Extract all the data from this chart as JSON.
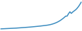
{
  "line_color": "#3a8bbf",
  "linewidth": 1.1,
  "background_color": "#ffffff",
  "y_values": [
    1.0,
    1.02,
    1.04,
    1.06,
    1.08,
    1.1,
    1.12,
    1.14,
    1.16,
    1.18,
    1.2,
    1.22,
    1.25,
    1.28,
    1.31,
    1.34,
    1.37,
    1.4,
    1.43,
    1.46,
    1.49,
    1.52,
    1.56,
    1.6,
    1.64,
    1.68,
    1.72,
    1.76,
    1.8,
    1.85,
    1.9,
    1.95,
    2.0,
    2.05,
    2.12,
    2.2,
    2.3,
    2.42,
    2.56,
    2.72,
    2.9,
    3.1,
    3.35,
    3.62,
    3.92,
    4.25,
    4.62,
    4.62,
    5.3,
    5.85,
    5.4,
    5.8,
    6.1,
    6.4,
    6.8,
    7.3,
    7.9,
    8.6
  ]
}
